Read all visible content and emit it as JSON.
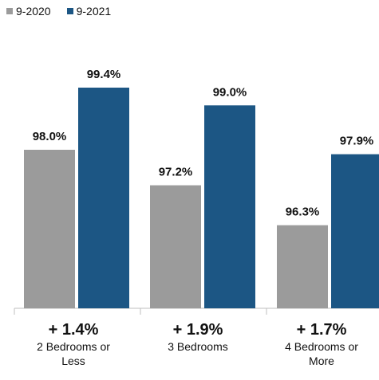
{
  "chart_data": {
    "type": "bar",
    "categories": [
      "2 Bedrooms or Less",
      "3 Bedrooms",
      "4 Bedrooms or More"
    ],
    "category_lines": [
      [
        "2 Bedrooms or",
        "Less"
      ],
      [
        "3 Bedrooms"
      ],
      [
        "4 Bedrooms or",
        "More"
      ]
    ],
    "changes": [
      "+ 1.4%",
      "+ 1.9%",
      "+ 1.7%"
    ],
    "series": [
      {
        "name": "9-2020",
        "values": [
          98.0,
          97.2,
          96.3
        ],
        "labels": [
          "98.0%",
          "97.2%",
          "96.3%"
        ]
      },
      {
        "name": "9-2021",
        "values": [
          99.4,
          99.0,
          97.9
        ],
        "labels": [
          "99.4%",
          "99.0%",
          "97.9%"
        ]
      }
    ],
    "colors": [
      "#9b9b9b",
      "#1c5684"
    ],
    "legend_position": "top-left",
    "grid": false
  }
}
